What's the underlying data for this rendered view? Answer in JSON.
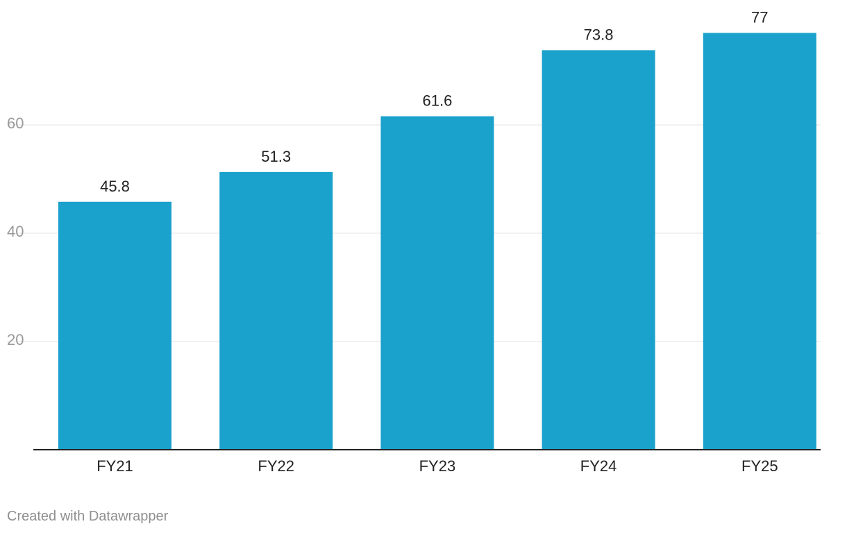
{
  "chart_data": {
    "type": "bar",
    "title": "",
    "xlabel": "",
    "ylabel": "",
    "categories": [
      "FY21",
      "FY22",
      "FY23",
      "FY24",
      "FY25"
    ],
    "values": [
      45.8,
      51.3,
      61.6,
      73.8,
      77
    ],
    "value_labels": [
      "45.8",
      "51.3",
      "61.6",
      "73.8",
      "77"
    ],
    "yticks": [
      20,
      40,
      60
    ],
    "ytick_labels": [
      "20",
      "40",
      "60"
    ],
    "ylim": [
      0,
      80
    ],
    "grid": true,
    "bar_color": "#1aa1cc"
  },
  "footer": {
    "credit": "Created with Datawrapper"
  }
}
